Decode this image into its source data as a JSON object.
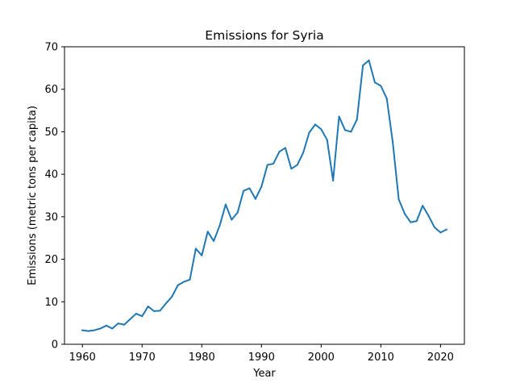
{
  "chart_data": {
    "type": "line",
    "title": "Emissions for Syria",
    "xlabel": "Year",
    "ylabel": "Emissions (metric tons per capita)",
    "xlim": [
      1957,
      2024
    ],
    "ylim": [
      0,
      70
    ],
    "xticks": [
      1960,
      1970,
      1980,
      1990,
      2000,
      2010,
      2020
    ],
    "yticks": [
      0,
      10,
      20,
      30,
      40,
      50,
      60,
      70
    ],
    "grid": false,
    "series": [
      {
        "color": "#1f77b4",
        "x": [
          1960,
          1961,
          1962,
          1963,
          1964,
          1965,
          1966,
          1967,
          1968,
          1969,
          1970,
          1971,
          1972,
          1973,
          1974,
          1975,
          1976,
          1977,
          1978,
          1979,
          1980,
          1981,
          1982,
          1983,
          1984,
          1985,
          1986,
          1987,
          1988,
          1989,
          1990,
          1991,
          1992,
          1993,
          1994,
          1995,
          1996,
          1997,
          1998,
          1999,
          2000,
          2001,
          2002,
          2003,
          2004,
          2005,
          2006,
          2007,
          2008,
          2009,
          2010,
          2011,
          2012,
          2013,
          2014,
          2015,
          2016,
          2017,
          2018,
          2019,
          2020,
          2021
        ],
        "y": [
          3.3,
          3.1,
          3.3,
          3.7,
          4.4,
          3.7,
          4.9,
          4.6,
          5.9,
          7.2,
          6.6,
          8.9,
          7.8,
          7.9,
          9.6,
          11.2,
          13.9,
          14.7,
          15.2,
          22.5,
          20.9,
          26.5,
          24.3,
          27.9,
          32.9,
          29.3,
          31.0,
          36.1,
          36.7,
          34.2,
          37.1,
          42.2,
          42.5,
          45.3,
          46.2,
          41.3,
          42.2,
          45.1,
          49.8,
          51.7,
          50.6,
          48.1,
          38.5,
          53.6,
          50.4,
          50.0,
          52.9,
          65.6,
          66.8,
          61.6,
          60.8,
          57.8,
          47.5,
          34.1,
          30.7,
          28.7,
          29.0,
          32.6,
          30.2,
          27.5,
          26.3,
          27.0
        ]
      }
    ]
  }
}
